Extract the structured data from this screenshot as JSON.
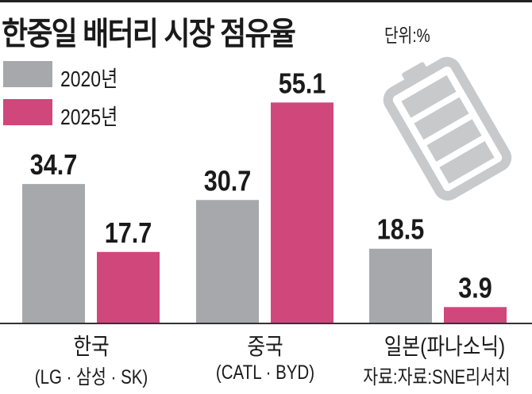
{
  "chart_data": {
    "type": "bar",
    "title": "한중일 배터리 시장 점유율",
    "unit": "단위:%",
    "categories": [
      "한국",
      "중국",
      "일본(파나소닉)"
    ],
    "category_subtitles": [
      "(LG · 삼성 · SK)",
      "(CATL · BYD)",
      "자료:자료:SNE리서치"
    ],
    "series": [
      {
        "name": "2020년",
        "color": "#a7a8ab",
        "values": [
          34.7,
          30.7,
          18.5
        ],
        "labels": [
          "34.7",
          "30.7",
          "18.5"
        ]
      },
      {
        "name": "2025년",
        "color": "#d0477c",
        "values": [
          17.7,
          55.1,
          3.9
        ],
        "labels": [
          "17.7",
          "55.1",
          "3.9"
        ]
      }
    ],
    "ylim": [
      0,
      60
    ],
    "grid": false,
    "legend": "top-left"
  },
  "icons": {
    "decoration": "battery-icon"
  }
}
